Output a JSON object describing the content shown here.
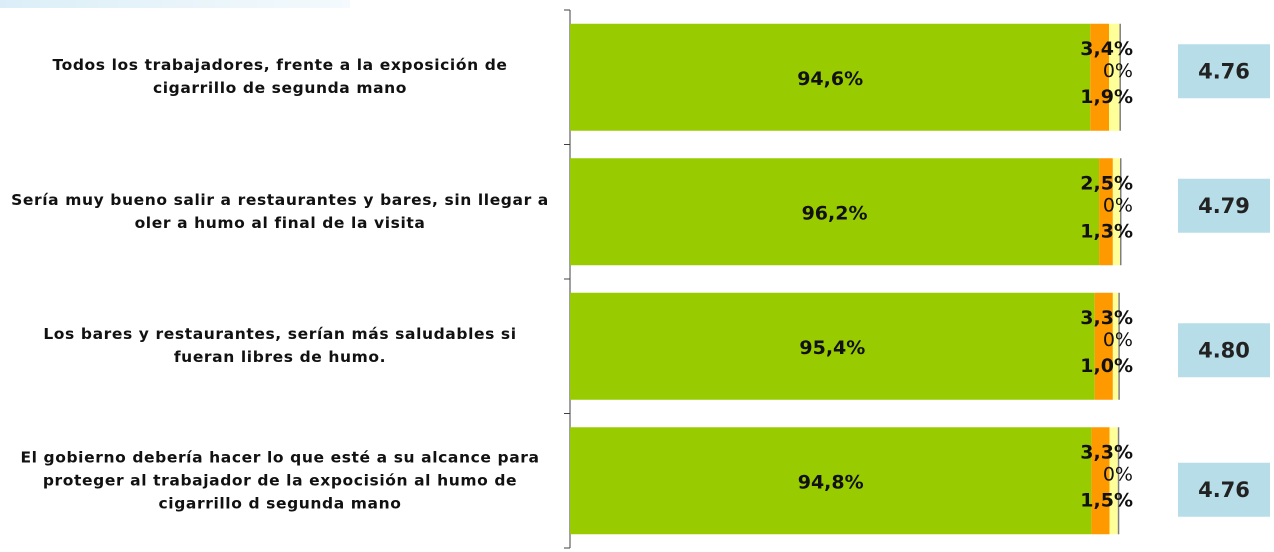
{
  "chart_data": {
    "type": "bar",
    "orientation": "horizontal",
    "stacked": true,
    "categories": [
      "Todos los trabajadores, frente a la exposición de cigarrillo de segunda mano",
      "Sería muy bueno salir a restaurantes y bares, sin llegar a oler a humo al final de la visita",
      "Los bares y restaurantes, serían más saludables si fueran libres de humo.",
      "El gobierno debería hacer lo que esté a su alcance para proteger al trabajador de la expocisión al humo de cigarrillo d segunda mano"
    ],
    "xlim": [
      0,
      100
    ],
    "series": [
      {
        "color": "#99cc00",
        "values": [
          94.6,
          96.2,
          95.4,
          94.8
        ],
        "value_labels": [
          "94,6%",
          "96,2%",
          "95,4%",
          "94,8%"
        ]
      },
      {
        "color": "#ff9900",
        "values": [
          3.4,
          2.5,
          3.3,
          3.3
        ],
        "value_labels": [
          "3,4%",
          "2,5%",
          "3,3%",
          "3,3%"
        ]
      },
      {
        "color": "#ffff99",
        "values": [
          1.9,
          1.3,
          1.0,
          1.5
        ],
        "value_labels": [
          "1,9%",
          "1,3%",
          "1,0%",
          "1,5%"
        ]
      },
      {
        "color": "#7f7f7f",
        "values": [
          0,
          0,
          0,
          0
        ],
        "value_labels": [
          "0%",
          "0%",
          "0%",
          "0%"
        ]
      }
    ],
    "scores": [
      4.76,
      4.79,
      4.8,
      4.76
    ],
    "score_labels": [
      "4.76",
      "4.79",
      "4.80",
      "4.76"
    ]
  }
}
